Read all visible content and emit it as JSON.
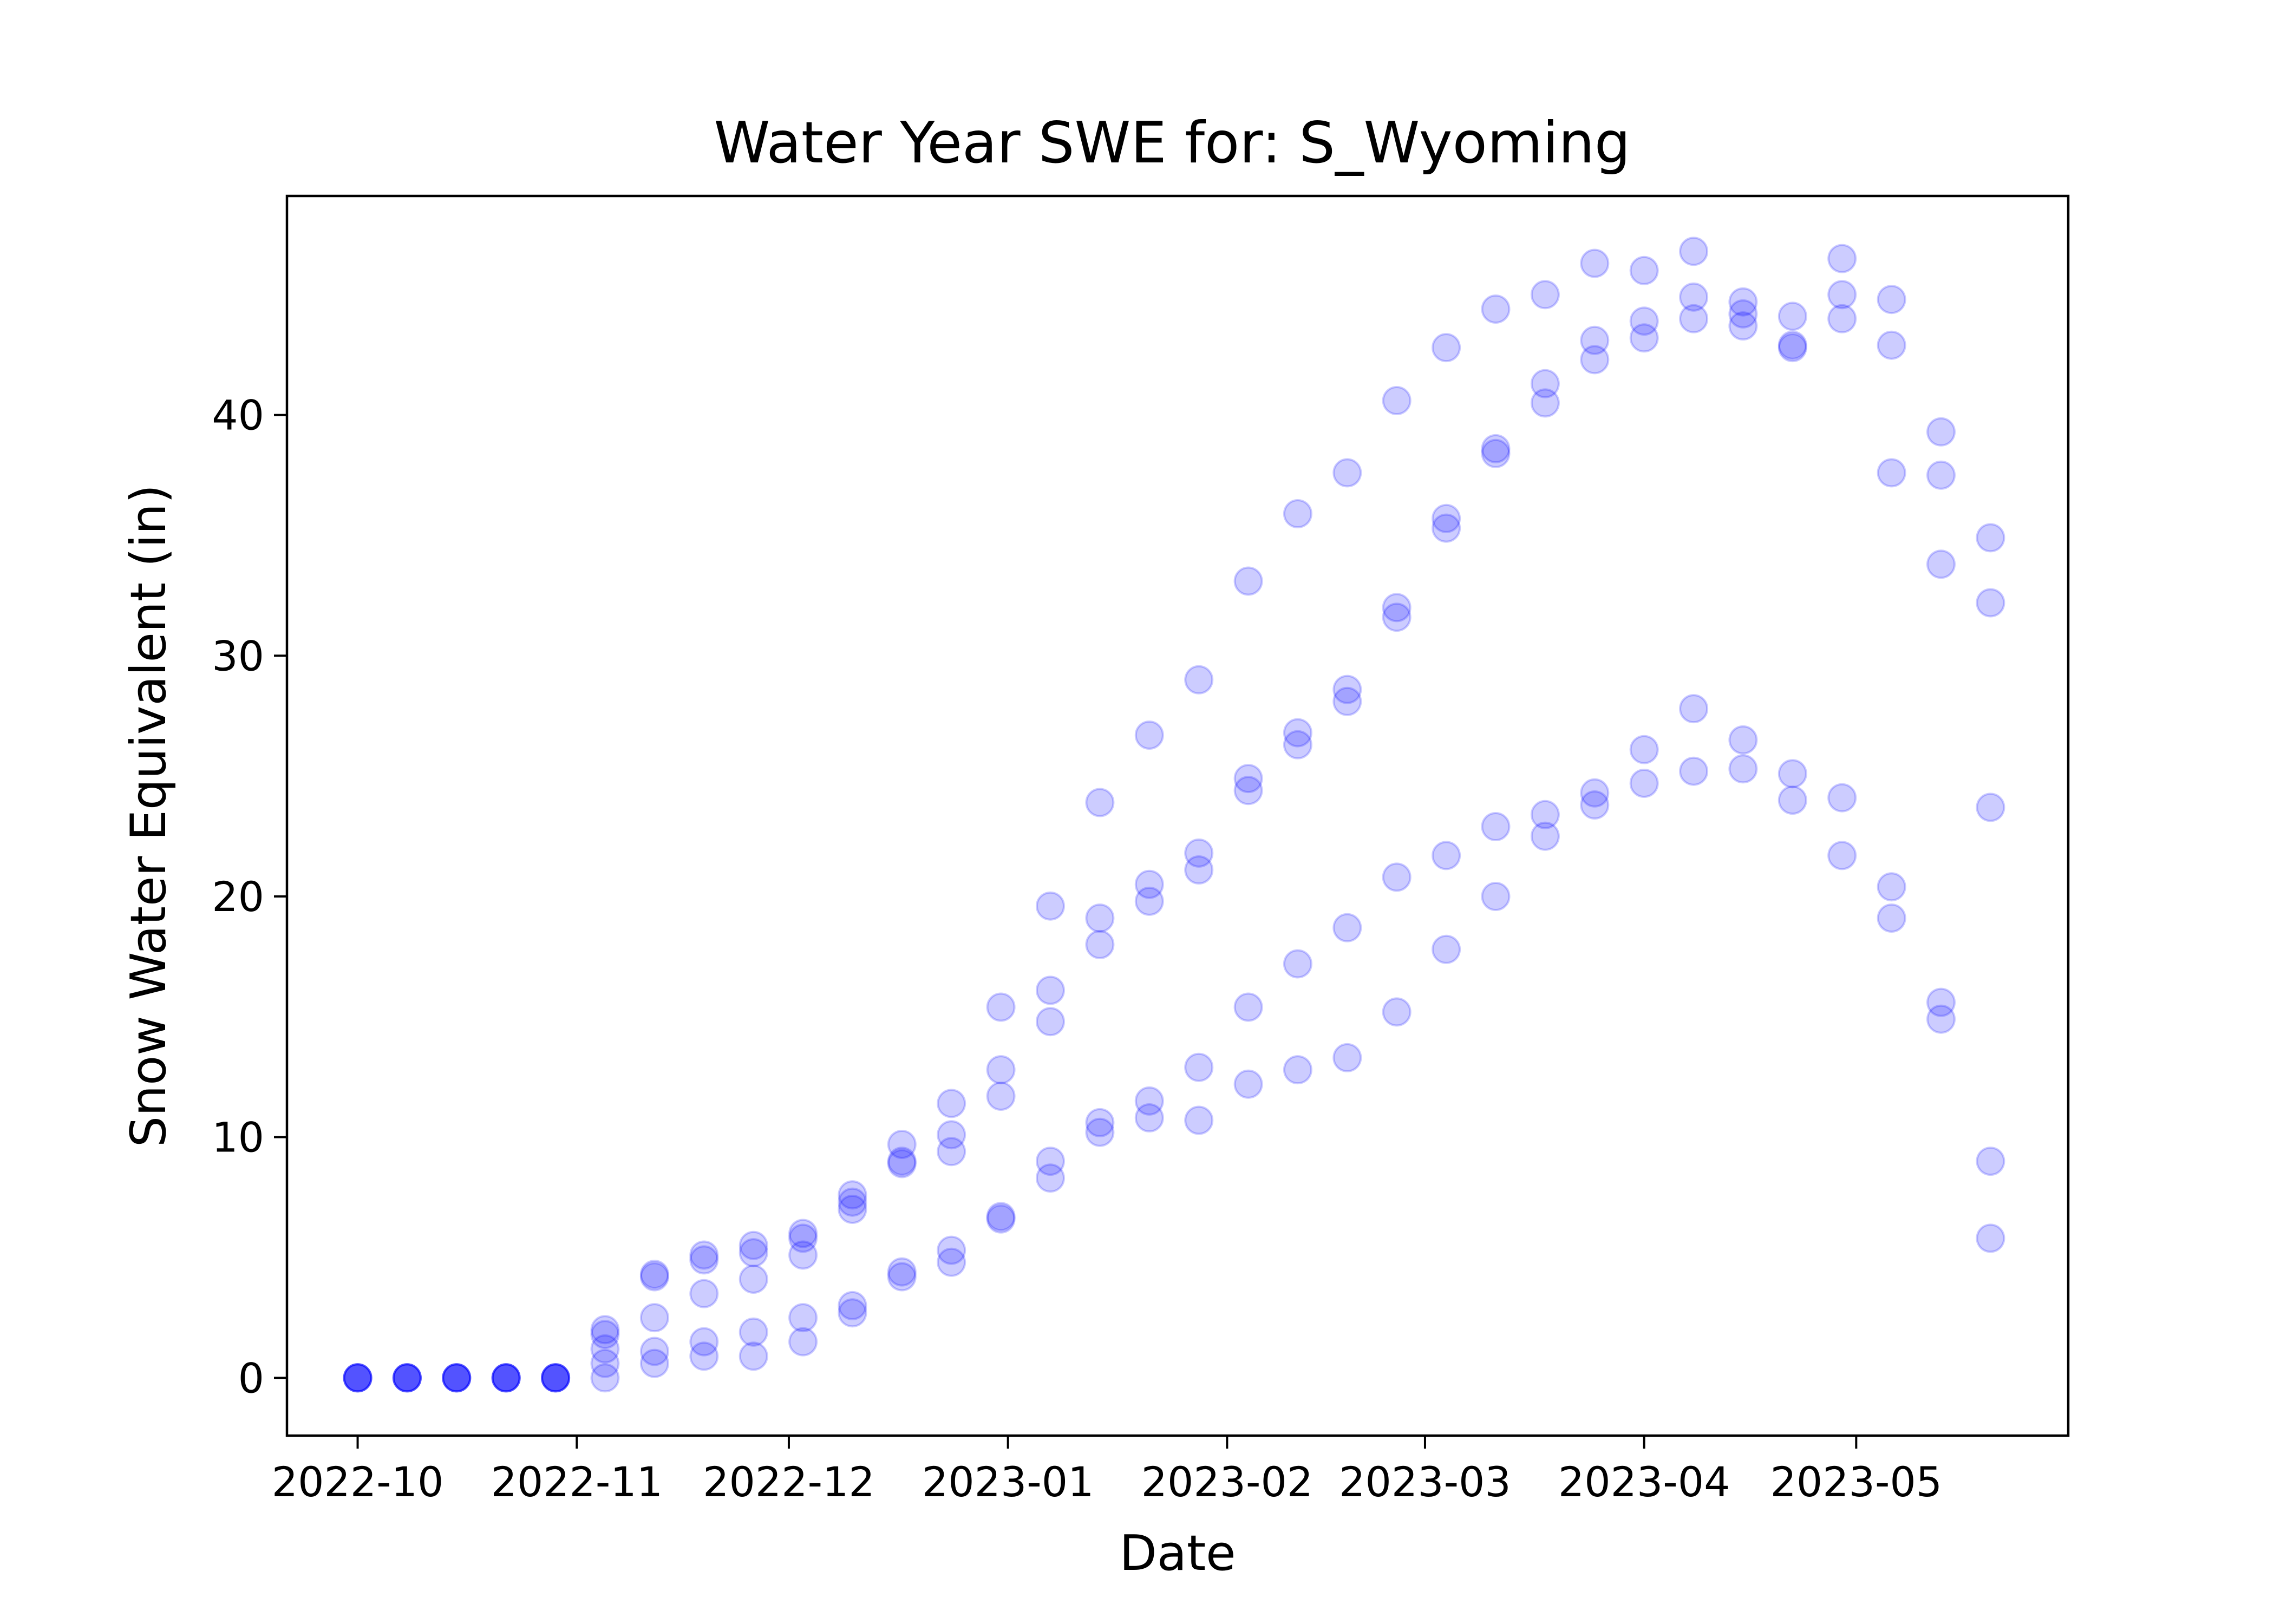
{
  "chart_data": {
    "type": "scatter",
    "title": "Water Year SWE for: S_Wyoming",
    "xlabel": "Date",
    "ylabel": "Snow Water Equivalent (in)",
    "xlim": [
      "2022-09-21",
      "2023-05-31"
    ],
    "ylim": [
      -2.4,
      49.1
    ],
    "x_ticks": [
      "2022-10",
      "2022-11",
      "2022-12",
      "2023-01",
      "2023-02",
      "2023-03",
      "2023-04",
      "2023-05"
    ],
    "y_ticks": [
      0,
      10,
      20,
      30,
      40
    ],
    "grid": false,
    "legend": false,
    "marker_color": "#0000ff",
    "marker_alpha": 0.2,
    "points": [
      {
        "date": "2022-10-01",
        "values": [
          0,
          0,
          0,
          0,
          0
        ]
      },
      {
        "date": "2022-10-08",
        "values": [
          0,
          0,
          0,
          0,
          0
        ]
      },
      {
        "date": "2022-10-15",
        "values": [
          0,
          0,
          0,
          0,
          0
        ]
      },
      {
        "date": "2022-10-22",
        "values": [
          0,
          0,
          0,
          0,
          0
        ]
      },
      {
        "date": "2022-10-29",
        "values": [
          0,
          0,
          0,
          0,
          0
        ]
      },
      {
        "date": "2022-11-05",
        "values": [
          2.0,
          1.8,
          1.2,
          0.6,
          0.0
        ]
      },
      {
        "date": "2022-11-12",
        "values": [
          4.3,
          4.2,
          2.5,
          1.1,
          0.6
        ]
      },
      {
        "date": "2022-11-19",
        "values": [
          5.1,
          4.9,
          3.5,
          1.5,
          0.9
        ]
      },
      {
        "date": "2022-11-26",
        "values": [
          5.5,
          5.2,
          4.1,
          1.9,
          0.9
        ]
      },
      {
        "date": "2022-12-03",
        "values": [
          6.0,
          5.8,
          5.1,
          2.5,
          1.5
        ]
      },
      {
        "date": "2022-12-10",
        "values": [
          7.6,
          7.3,
          7.0,
          3.0,
          2.7
        ]
      },
      {
        "date": "2022-12-17",
        "values": [
          9.7,
          9.0,
          8.9,
          4.4,
          4.2
        ]
      },
      {
        "date": "2022-12-24",
        "values": [
          11.4,
          10.1,
          9.4,
          5.3,
          4.8
        ]
      },
      {
        "date": "2022-12-31",
        "values": [
          15.4,
          12.8,
          11.7,
          6.7,
          6.6
        ]
      },
      {
        "date": "2023-01-07",
        "values": [
          19.6,
          16.1,
          14.8,
          9.0,
          8.3
        ]
      },
      {
        "date": "2023-01-14",
        "values": [
          23.9,
          19.1,
          18.0,
          10.6,
          10.2
        ]
      },
      {
        "date": "2023-01-21",
        "values": [
          26.7,
          20.5,
          19.8,
          11.5,
          10.8
        ]
      },
      {
        "date": "2023-01-28",
        "values": [
          29.0,
          21.8,
          21.1,
          12.9,
          10.7
        ]
      },
      {
        "date": "2023-02-04",
        "values": [
          33.1,
          24.9,
          24.4,
          15.4,
          12.2
        ]
      },
      {
        "date": "2023-02-11",
        "values": [
          35.9,
          26.8,
          26.3,
          17.2,
          12.8
        ]
      },
      {
        "date": "2023-02-18",
        "values": [
          37.6,
          28.6,
          28.1,
          18.7,
          13.3
        ]
      },
      {
        "date": "2023-02-25",
        "values": [
          40.6,
          32.0,
          31.6,
          20.8,
          15.2
        ]
      },
      {
        "date": "2023-03-04",
        "values": [
          42.8,
          35.7,
          35.3,
          21.7,
          17.8
        ]
      },
      {
        "date": "2023-03-11",
        "values": [
          44.4,
          38.6,
          38.4,
          22.9,
          20.0
        ]
      },
      {
        "date": "2023-03-18",
        "values": [
          45.0,
          41.3,
          40.5,
          23.4,
          22.5
        ]
      },
      {
        "date": "2023-03-25",
        "values": [
          46.3,
          43.1,
          42.3,
          24.3,
          23.8
        ]
      },
      {
        "date": "2023-04-01",
        "values": [
          46.0,
          43.9,
          43.2,
          26.1,
          24.7
        ]
      },
      {
        "date": "2023-04-08",
        "values": [
          46.8,
          44.9,
          44.0,
          27.8,
          25.2
        ]
      },
      {
        "date": "2023-04-15",
        "values": [
          44.7,
          44.2,
          43.7,
          26.5,
          25.3
        ]
      },
      {
        "date": "2023-04-22",
        "values": [
          44.1,
          42.9,
          42.8,
          25.1,
          24.0
        ]
      },
      {
        "date": "2023-04-29",
        "values": [
          46.5,
          45.0,
          44.0,
          24.1,
          21.7
        ]
      },
      {
        "date": "2023-05-06",
        "values": [
          44.8,
          42.9,
          37.6,
          20.4,
          19.1
        ]
      },
      {
        "date": "2023-05-13",
        "values": [
          39.3,
          37.5,
          33.8,
          15.6,
          14.9
        ]
      },
      {
        "date": "2023-05-20",
        "values": [
          34.9,
          32.2,
          23.7,
          9.0,
          5.8
        ]
      }
    ]
  }
}
